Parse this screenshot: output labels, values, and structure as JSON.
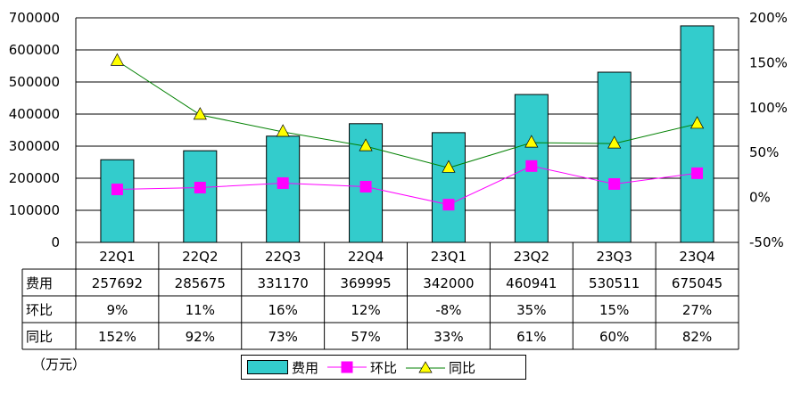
{
  "chart_data": {
    "type": "bar",
    "categories": [
      "22Q1",
      "22Q2",
      "22Q3",
      "22Q4",
      "23Q1",
      "23Q2",
      "23Q3",
      "23Q4"
    ],
    "series": [
      {
        "name": "费用",
        "type": "bar",
        "axis": "left",
        "values": [
          257692,
          285675,
          331170,
          369995,
          342000,
          460941,
          530511,
          675045
        ],
        "color": "#33cccc"
      },
      {
        "name": "环比",
        "type": "line",
        "axis": "right",
        "values": [
          9,
          11,
          16,
          12,
          -8,
          35,
          15,
          27
        ],
        "color": "#ff00ff",
        "marker": "square"
      },
      {
        "name": "同比",
        "type": "line",
        "axis": "right",
        "values": [
          152,
          92,
          73,
          57,
          33,
          61,
          60,
          82
        ],
        "color": "#008000",
        "marker": "triangle",
        "marker_color": "#ffff00"
      }
    ],
    "y_left": {
      "ylim": [
        0,
        700000
      ],
      "ticks": [
        "0",
        "100000",
        "200000",
        "300000",
        "400000",
        "500000",
        "600000",
        "700000"
      ]
    },
    "y_right": {
      "ylim": [
        -50,
        200
      ],
      "ticks": [
        "-50%",
        "0%",
        "50%",
        "100%",
        "150%",
        "200%"
      ]
    },
    "table": {
      "rows": [
        {
          "label": "费用",
          "values": [
            "257692",
            "285675",
            "331170",
            "369995",
            "342000",
            "460941",
            "530511",
            "675045"
          ]
        },
        {
          "label": "环比",
          "values": [
            "9%",
            "11%",
            "16%",
            "12%",
            "-8%",
            "35%",
            "15%",
            "27%"
          ]
        },
        {
          "label": "同比",
          "values": [
            "152%",
            "92%",
            "73%",
            "57%",
            "33%",
            "61%",
            "60%",
            "82%"
          ]
        }
      ]
    },
    "unit_note": "（万元）",
    "grid": true,
    "legend_position": "bottom"
  }
}
